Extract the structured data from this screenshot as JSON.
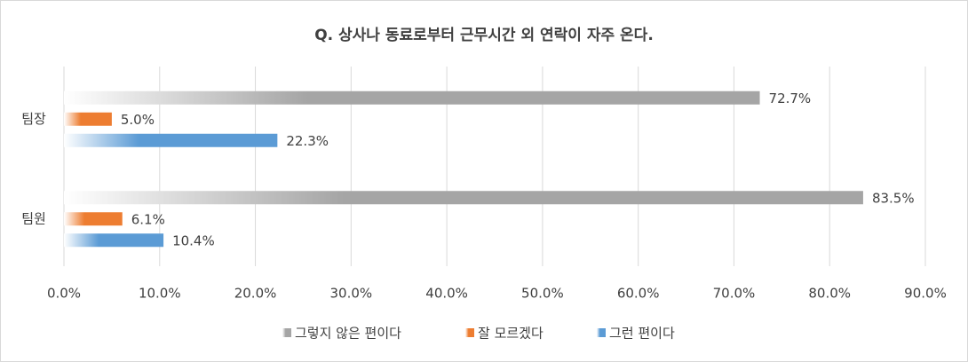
{
  "chart_data": {
    "type": "bar",
    "orientation": "horizontal",
    "title": "Q. 상사나 동료로부터 근무시간 외 연락이 자주 온다.",
    "categories": [
      "팀장",
      "팀원"
    ],
    "series": [
      {
        "name": "그렇지 않은 편이다",
        "color": "#a5a5a5",
        "values": [
          72.7,
          83.5
        ],
        "value_labels": [
          "72.7%",
          "83.5%"
        ]
      },
      {
        "name": "잘 모르겠다",
        "color": "#ed7d31",
        "values": [
          5.0,
          6.1
        ],
        "value_labels": [
          "5.0%",
          "6.1%"
        ]
      },
      {
        "name": "그런 편이다",
        "color": "#5b9bd5",
        "values": [
          22.3,
          10.4
        ],
        "value_labels": [
          "22.3%",
          "10.4%"
        ]
      }
    ],
    "xlim": [
      0,
      90
    ],
    "xticks": [
      {
        "value": 0,
        "label": "0.0%"
      },
      {
        "value": 10,
        "label": "10.0%"
      },
      {
        "value": 20,
        "label": "20.0%"
      },
      {
        "value": 30,
        "label": "30.0%"
      },
      {
        "value": 40,
        "label": "40.0%"
      },
      {
        "value": 50,
        "label": "50.0%"
      },
      {
        "value": 60,
        "label": "60.0%"
      },
      {
        "value": 70,
        "label": "70.0%"
      },
      {
        "value": 80,
        "label": "80.0%"
      },
      {
        "value": 90,
        "label": "90.0%"
      }
    ],
    "grid": true,
    "legend": "bottom"
  }
}
